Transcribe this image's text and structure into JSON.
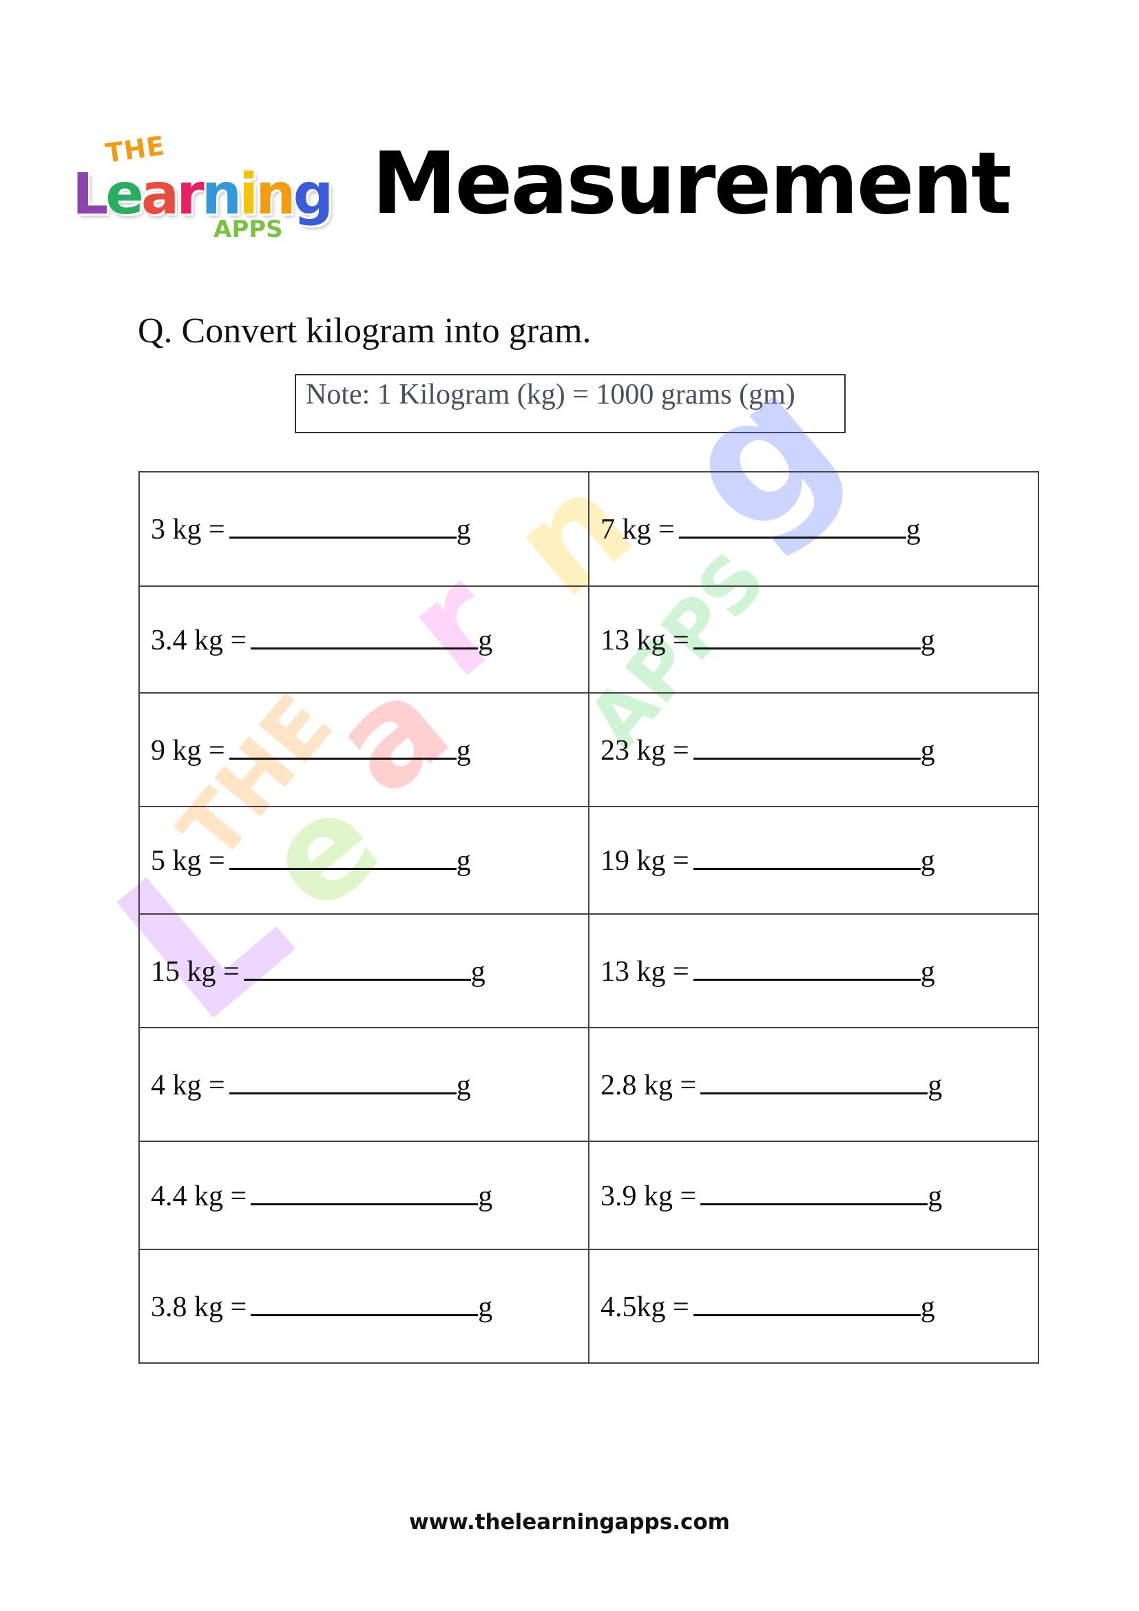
{
  "logo": {
    "the": "THE",
    "letters": [
      "L",
      "e",
      "a",
      "r",
      "n",
      "i",
      "n",
      "g"
    ],
    "apps": "APPS",
    "letter_colors": [
      "#8e44ad",
      "#27ae60",
      "#e74c3c",
      "#e91e63",
      "#3498db",
      "#f1c40f",
      "#f39c12",
      "#3b5bdb"
    ]
  },
  "header": {
    "title": "Measurement"
  },
  "question": "Q. Convert kilogram into gram.",
  "note": "Note: 1 Kilogram (kg) = 1000 grams (gm)",
  "unit_suffix": "g",
  "rows": [
    {
      "left": "3 kg =",
      "right": "7 kg ="
    },
    {
      "left": "3.4 kg =",
      "right": "13 kg ="
    },
    {
      "left": "9 kg =",
      "right": "23 kg ="
    },
    {
      "left": "5 kg =",
      "right": "19 kg ="
    },
    {
      "left": "15 kg =",
      "right": "13 kg ="
    },
    {
      "left": "4 kg =",
      "right": "2.8 kg ="
    },
    {
      "left": "4.4 kg =",
      "right": "3.9 kg ="
    },
    {
      "left": "3.8 kg =",
      "right": "4.5kg ="
    }
  ],
  "footer": "www.thelearningapps.com"
}
